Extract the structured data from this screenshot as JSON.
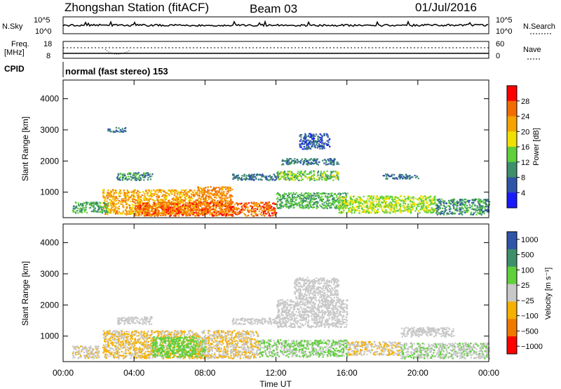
{
  "header": {
    "station": "Zhongshan Station (fitACF)",
    "beam": "Beam 03",
    "date": "01/Jul/2016"
  },
  "sky_panel": {
    "left_label": "N.Sky",
    "left_ticks": [
      "10^5",
      "10^0"
    ],
    "right_ticks": [
      "10^5",
      "10^0"
    ],
    "right_label": "N.Search"
  },
  "freq_panel": {
    "left_label_1": "Freq.",
    "left_label_2": "[MHz]",
    "left_ticks": [
      "18",
      "8"
    ],
    "right_ticks": [
      "60",
      "0"
    ],
    "right_label": "Nave"
  },
  "cpid": {
    "label": "CPID",
    "value": "normal (fast stereo) 153"
  },
  "x_axis": {
    "label": "Time UT",
    "ticks": [
      "00:00",
      "04:00",
      "08:00",
      "12:00",
      "16:00",
      "20:00",
      "00:00"
    ]
  },
  "colors": {
    "power": [
      "#1a1aff",
      "#2f55a8",
      "#3e8f6b",
      "#5fcf3a",
      "#f0e000",
      "#f5a300",
      "#f26c00",
      "#ff0000"
    ],
    "velocity": [
      "#2f55a8",
      "#3e8f6b",
      "#5fcf3a",
      "#c8c8c8",
      "#f5b000",
      "#f07800",
      "#ff0000"
    ]
  },
  "chart_data": [
    {
      "type": "heatmap",
      "panel": "power",
      "ylabel": "Slant Range [km]",
      "xlabel": "",
      "y_ticks": [
        "1000",
        "2000",
        "3000",
        "4000"
      ],
      "ylim": [
        180,
        4600
      ],
      "xlim_hours": [
        0,
        24
      ],
      "colorbar_label": "Power [dB]",
      "colorbar_ticks": [
        "4",
        "8",
        "12",
        "16",
        "20",
        "24",
        "28"
      ],
      "colorbar_range": [
        0,
        32
      ],
      "regions": [
        {
          "t": [
            2.2,
            7.5
          ],
          "r": [
            300,
            1100
          ],
          "v": 22
        },
        {
          "t": [
            3.0,
            5.0
          ],
          "r": [
            1400,
            1650
          ],
          "v": 10
        },
        {
          "t": [
            7.5,
            9.5
          ],
          "r": [
            300,
            1200
          ],
          "v": 24
        },
        {
          "t": [
            4.0,
            12.0
          ],
          "r": [
            250,
            700
          ],
          "v": 26
        },
        {
          "t": [
            9.5,
            12.0
          ],
          "r": [
            1400,
            1600
          ],
          "v": 8
        },
        {
          "t": [
            12.0,
            16.0
          ],
          "r": [
            500,
            1000
          ],
          "v": 12
        },
        {
          "t": [
            12.0,
            15.5
          ],
          "r": [
            1400,
            1700
          ],
          "v": 14
        },
        {
          "t": [
            12.3,
            15.5
          ],
          "r": [
            1900,
            2100
          ],
          "v": 8
        },
        {
          "t": [
            13.3,
            15.0
          ],
          "r": [
            2400,
            2900
          ],
          "v": 6
        },
        {
          "t": [
            15.5,
            21.0
          ],
          "r": [
            350,
            900
          ],
          "v": 16
        },
        {
          "t": [
            18.0,
            20.0
          ],
          "r": [
            1450,
            1600
          ],
          "v": 8
        },
        {
          "t": [
            21.0,
            24.0
          ],
          "r": [
            300,
            800
          ],
          "v": 10
        },
        {
          "t": [
            0.5,
            2.5
          ],
          "r": [
            350,
            700
          ],
          "v": 12
        },
        {
          "t": [
            2.5,
            3.5
          ],
          "r": [
            2950,
            3100
          ],
          "v": 8
        }
      ]
    },
    {
      "type": "heatmap",
      "panel": "velocity",
      "ylabel": "Slant Range [km]",
      "xlabel": "Time UT",
      "y_ticks": [
        "1000",
        "2000",
        "3000",
        "4000"
      ],
      "ylim": [
        180,
        4600
      ],
      "xlim_hours": [
        0,
        24
      ],
      "colorbar_label": "Velocity [m s⁻¹]",
      "colorbar_ticks": [
        "1000",
        "500",
        "100",
        "25",
        "−25",
        "−100",
        "−500",
        "−1000"
      ],
      "colorbar_range": [
        -1000,
        1000
      ],
      "regions": [
        {
          "t": [
            2.2,
            7.5
          ],
          "r": [
            300,
            1200
          ],
          "v": -150
        },
        {
          "t": [
            3.0,
            5.0
          ],
          "r": [
            1400,
            1650
          ],
          "v": 0
        },
        {
          "t": [
            5.0,
            8.0
          ],
          "r": [
            350,
            1000
          ],
          "v": 300
        },
        {
          "t": [
            7.5,
            11.0
          ],
          "r": [
            300,
            1200
          ],
          "v": -120
        },
        {
          "t": [
            9.5,
            12.0
          ],
          "r": [
            1400,
            1600
          ],
          "v": 0
        },
        {
          "t": [
            11.0,
            16.0
          ],
          "r": [
            350,
            900
          ],
          "v": 150
        },
        {
          "t": [
            12.0,
            16.0
          ],
          "r": [
            1300,
            2200
          ],
          "v": 0
        },
        {
          "t": [
            13.0,
            15.5
          ],
          "r": [
            2200,
            2900
          ],
          "v": 0
        },
        {
          "t": [
            16.0,
            19.0
          ],
          "r": [
            400,
            850
          ],
          "v": -120
        },
        {
          "t": [
            19.0,
            22.0
          ],
          "r": [
            1000,
            1300
          ],
          "v": 0
        },
        {
          "t": [
            19.0,
            24.0
          ],
          "r": [
            300,
            800
          ],
          "v": 100
        },
        {
          "t": [
            0.5,
            2.0
          ],
          "r": [
            300,
            700
          ],
          "v": -80
        }
      ]
    }
  ]
}
